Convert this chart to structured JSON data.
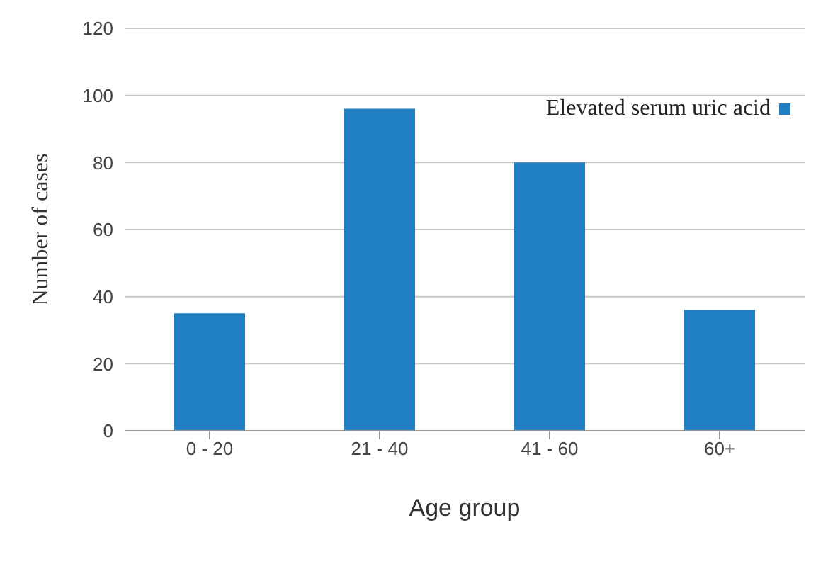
{
  "chart_data": {
    "type": "bar",
    "xlabel": "Age group",
    "ylabel": "Number of cases",
    "categories": [
      "0 - 20",
      "21 - 40",
      "41 - 60",
      "60+"
    ],
    "series": [
      {
        "name": "Elevated serum uric acid",
        "color": "#1f7fc0",
        "values": [
          35,
          96,
          80,
          36
        ]
      }
    ],
    "ylim": [
      0,
      120
    ],
    "yticks": [
      0,
      20,
      40,
      60,
      80,
      100,
      120
    ],
    "grid": "y",
    "legend": "top right"
  }
}
